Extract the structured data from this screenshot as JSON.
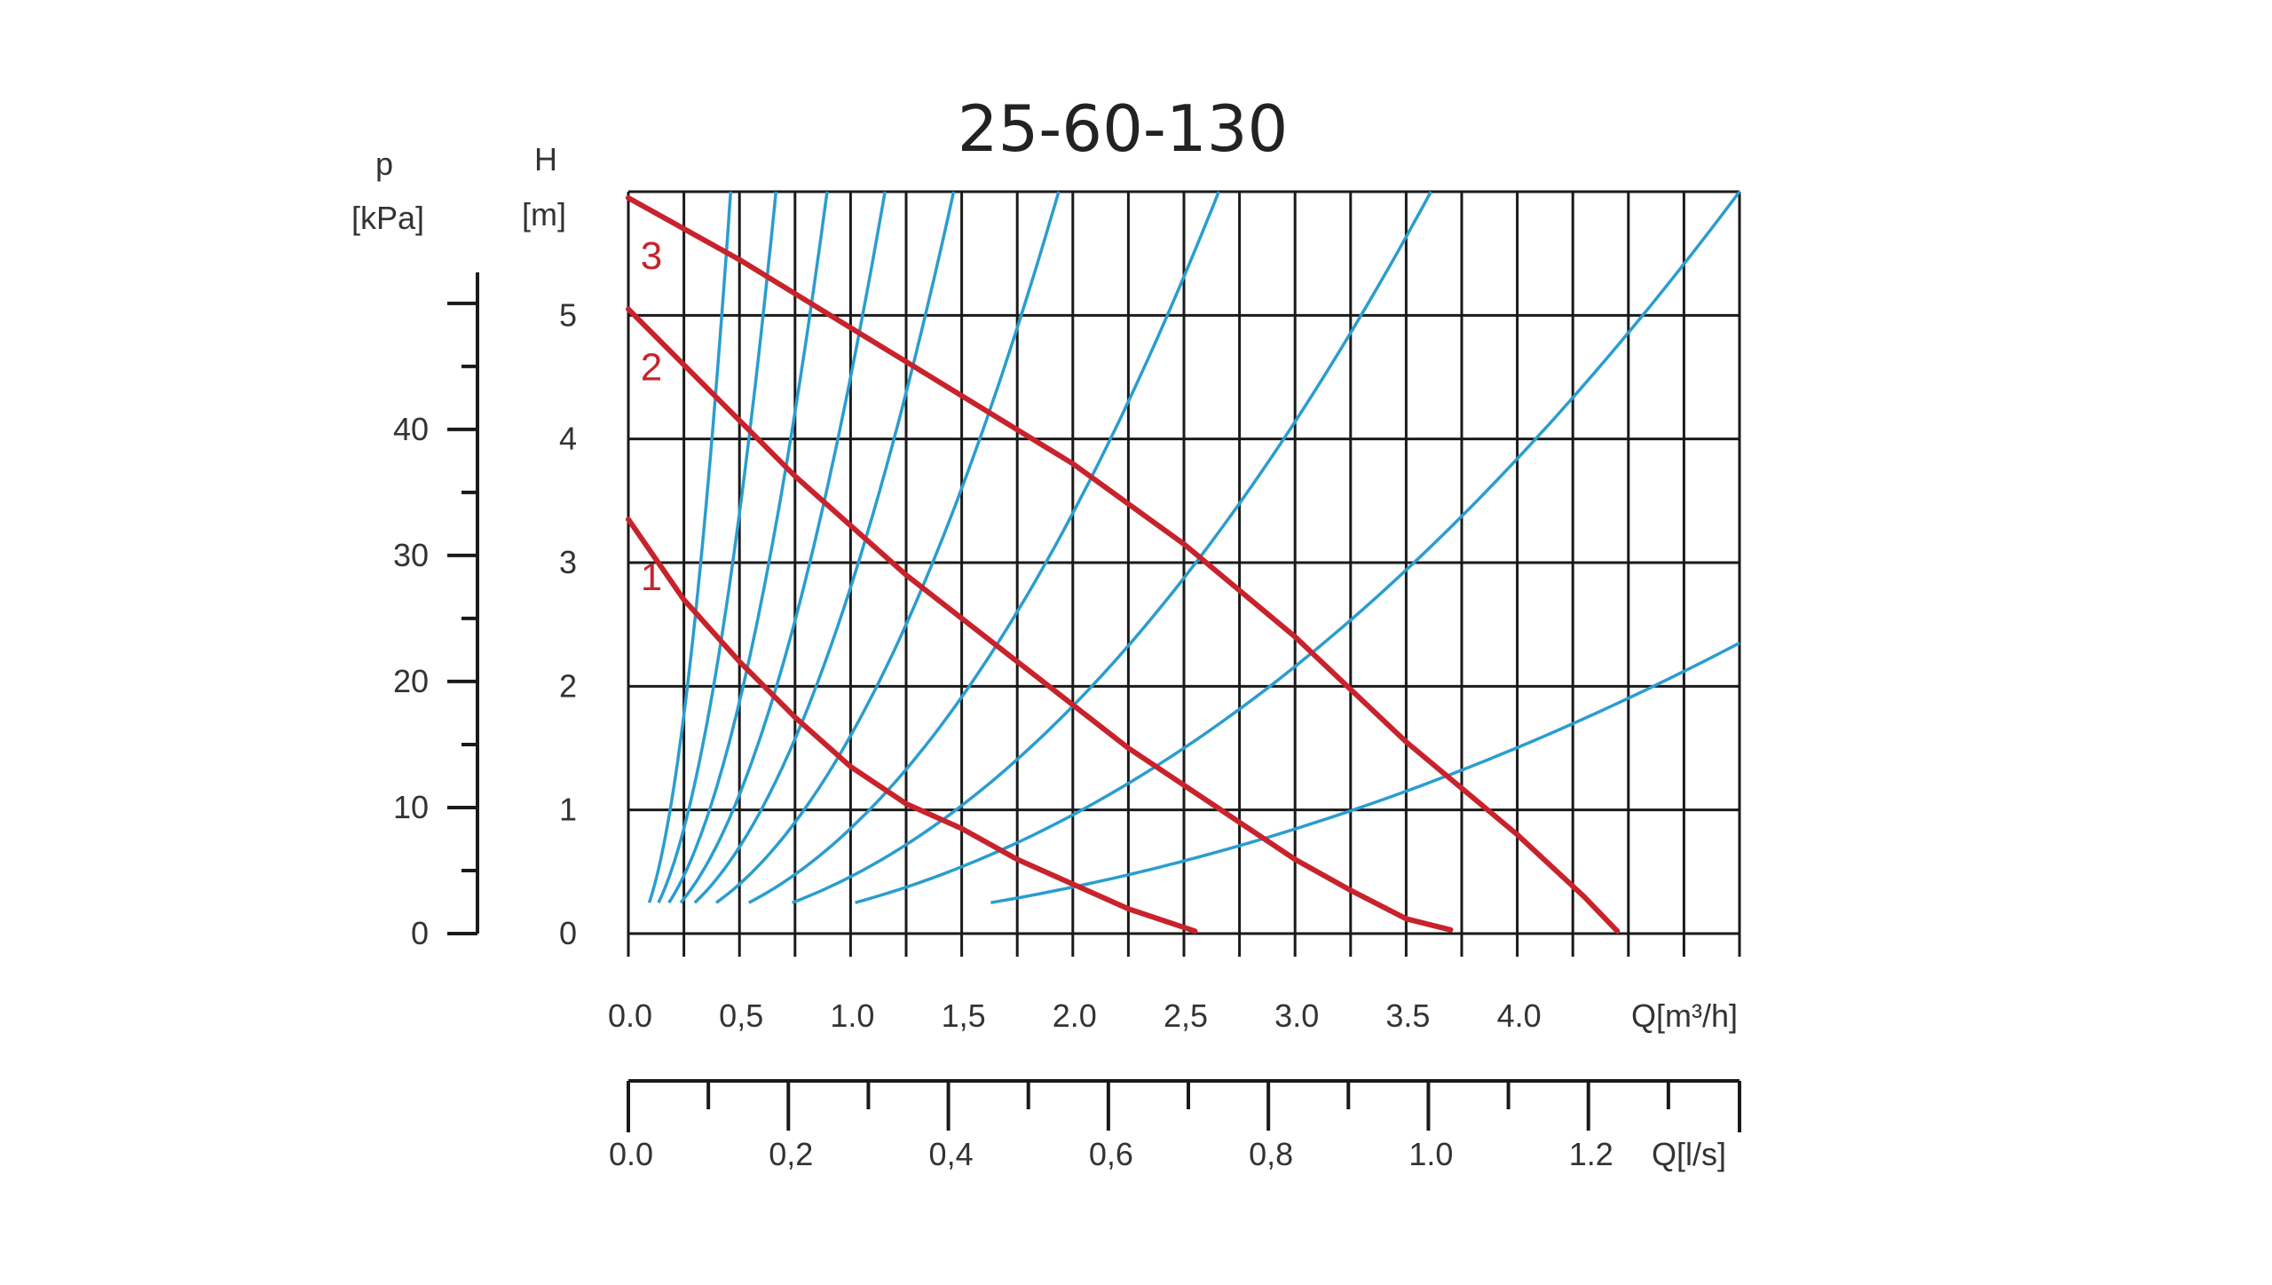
{
  "chart_data": {
    "type": "line",
    "title": "25-60-130",
    "colors": {
      "pump_curve": "#c8232c",
      "system_curve": "#2a9dcf",
      "grid": "#1a1a1a",
      "text": "#333333"
    },
    "x_axis": {
      "label": "Q[m³/h]",
      "range": [
        0,
        5.0
      ],
      "tick_labels": [
        "0.0",
        "0,5",
        "1.0",
        "1,5",
        "2.0",
        "2,5",
        "3.0",
        "3.5",
        "4.0"
      ],
      "tick_values": [
        0.0,
        0.5,
        1.0,
        1.5,
        2.0,
        2.5,
        3.0,
        3.5,
        4.0
      ]
    },
    "y_axis": {
      "label_top": "H",
      "label_unit": "[m]",
      "range": [
        0,
        6
      ],
      "tick_labels": [
        "0",
        "1",
        "2",
        "3",
        "4",
        "5"
      ],
      "tick_values": [
        0,
        1,
        2,
        3,
        4,
        5
      ]
    },
    "secondary_y_axis": {
      "label_top": "p",
      "label_unit": "[kPa]",
      "tick_labels": [
        "0",
        "10",
        "20",
        "30",
        "40"
      ],
      "tick_values": [
        0,
        10,
        20,
        30,
        40
      ]
    },
    "secondary_x_axis": {
      "label": "Q[l/s]",
      "tick_labels": [
        "0.0",
        "0,2",
        "0,4",
        "0,6",
        "0,8",
        "1.0",
        "1.2"
      ],
      "tick_values": [
        0.0,
        0.2,
        0.4,
        0.6,
        0.8,
        1.0,
        1.2
      ]
    },
    "grid": true,
    "series": [
      {
        "name": "1",
        "points": [
          [
            0,
            3.35
          ],
          [
            0.25,
            2.7
          ],
          [
            0.5,
            2.2
          ],
          [
            0.75,
            1.75
          ],
          [
            1.0,
            1.35
          ],
          [
            1.25,
            1.05
          ],
          [
            1.5,
            0.85
          ],
          [
            1.75,
            0.6
          ],
          [
            2.0,
            0.4
          ],
          [
            2.25,
            0.2
          ],
          [
            2.55,
            0.02
          ]
        ]
      },
      {
        "name": "2",
        "points": [
          [
            0,
            5.05
          ],
          [
            0.25,
            4.6
          ],
          [
            0.5,
            4.15
          ],
          [
            0.75,
            3.7
          ],
          [
            1.0,
            3.3
          ],
          [
            1.25,
            2.9
          ],
          [
            1.5,
            2.55
          ],
          [
            1.75,
            2.2
          ],
          [
            2.0,
            1.85
          ],
          [
            2.25,
            1.5
          ],
          [
            2.5,
            1.2
          ],
          [
            2.75,
            0.9
          ],
          [
            3.0,
            0.6
          ],
          [
            3.25,
            0.35
          ],
          [
            3.5,
            0.12
          ],
          [
            3.7,
            0.03
          ]
        ]
      },
      {
        "name": "3",
        "points": [
          [
            0,
            5.95
          ],
          [
            0.5,
            5.45
          ],
          [
            1.0,
            4.9
          ],
          [
            1.5,
            4.35
          ],
          [
            2.0,
            3.8
          ],
          [
            2.5,
            3.15
          ],
          [
            3.0,
            2.4
          ],
          [
            3.5,
            1.55
          ],
          [
            4.0,
            0.8
          ],
          [
            4.3,
            0.3
          ],
          [
            4.45,
            0.02
          ]
        ]
      }
    ],
    "system_curves": [
      {
        "k": 28.3
      },
      {
        "k": 13.6
      },
      {
        "k": 7.5
      },
      {
        "k": 4.5
      },
      {
        "k": 2.8
      },
      {
        "k": 1.6
      },
      {
        "k": 0.85
      },
      {
        "k": 0.46
      },
      {
        "k": 0.24
      },
      {
        "k": 0.094
      }
    ]
  }
}
